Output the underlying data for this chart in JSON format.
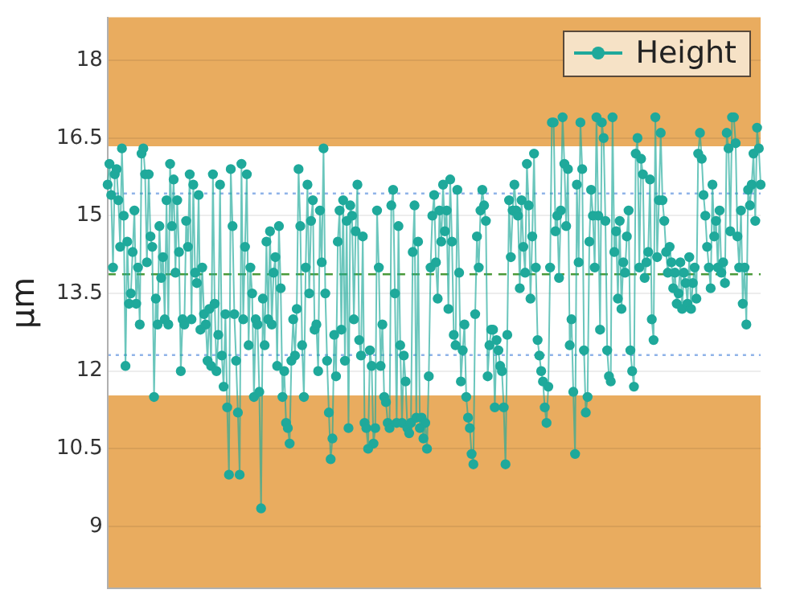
{
  "chart_data": {
    "type": "line",
    "ylabel": "µm",
    "categories": [
      null,
      null,
      null,
      null,
      null,
      null,
      null,
      null,
      null,
      null,
      null,
      null,
      null,
      null,
      null,
      null,
      null,
      null,
      null,
      null,
      null,
      null,
      null,
      null,
      null,
      null,
      null,
      null,
      null,
      null,
      null,
      null,
      null,
      null,
      null,
      null,
      null,
      null,
      null,
      null,
      null,
      null,
      null,
      null,
      null,
      null,
      null,
      null,
      null,
      null,
      null,
      null,
      null,
      null,
      null,
      null,
      null,
      null,
      null,
      null,
      null,
      null,
      null,
      null,
      null,
      null,
      null,
      null,
      null,
      null,
      null,
      null,
      null,
      null,
      null,
      null,
      null,
      null,
      null,
      null,
      null,
      null,
      null,
      null,
      null,
      null,
      null,
      null,
      null,
      null,
      null,
      null,
      null,
      null,
      null,
      null,
      null,
      null,
      null,
      null,
      null,
      null,
      null,
      null,
      null,
      null,
      null,
      null,
      null,
      null,
      null,
      null,
      null,
      null,
      null,
      null,
      null,
      null,
      null,
      null,
      null,
      null,
      null,
      null,
      null,
      null,
      null,
      null,
      null,
      null,
      null,
      null,
      null,
      null,
      null,
      null,
      null,
      null,
      null,
      null,
      null,
      null,
      null,
      null,
      null,
      null,
      null,
      null,
      null,
      null,
      null,
      null,
      null,
      null,
      null,
      null,
      null,
      null,
      null,
      null,
      null,
      null,
      null,
      null,
      null,
      null,
      null,
      null,
      null,
      null,
      null,
      null,
      null,
      null,
      null,
      null,
      null,
      null,
      null,
      null,
      null,
      null,
      null,
      null,
      null,
      null,
      null,
      null,
      null,
      null,
      null,
      null,
      null,
      null,
      null,
      null,
      null,
      null,
      null,
      null,
      null,
      null,
      null,
      null,
      null,
      null,
      null,
      null,
      null,
      null,
      null,
      null,
      null,
      null,
      null,
      null,
      null,
      null,
      null,
      null,
      null,
      null,
      null,
      null,
      null,
      null,
      null,
      null,
      null,
      null,
      null,
      null,
      null,
      null,
      null,
      null,
      null,
      null,
      null,
      null,
      null,
      null,
      null,
      null,
      null,
      null,
      null,
      null,
      null,
      null,
      null,
      null,
      null,
      null,
      null,
      null,
      null,
      null,
      null,
      null,
      null,
      null,
      null,
      null,
      null,
      null,
      null,
      null,
      null,
      null,
      null,
      null,
      null,
      null,
      null,
      null,
      null,
      null,
      null,
      null,
      null,
      null,
      null,
      null,
      null,
      null,
      null,
      null,
      null,
      null,
      null,
      null,
      null,
      null,
      null,
      null,
      null,
      null,
      null,
      null,
      null,
      null,
      null,
      null,
      null,
      null,
      null,
      null,
      null,
      null,
      null,
      null,
      null,
      null,
      null,
      null,
      null,
      null,
      null,
      null,
      null,
      null,
      null,
      null,
      null,
      null,
      null,
      null,
      null,
      null,
      null,
      null,
      null,
      null,
      null,
      null,
      null,
      null,
      null,
      null,
      null,
      null,
      null,
      null,
      null,
      null,
      null,
      null,
      null,
      null,
      null,
      null,
      null,
      null,
      null,
      null,
      null,
      null,
      null,
      null,
      null,
      null,
      null,
      null,
      null,
      null,
      null
    ],
    "series": [
      {
        "name": "Height",
        "color": "#1fa99b",
        "values": [
          15.6,
          16.0,
          15.4,
          14.0,
          15.8,
          15.9,
          15.3,
          14.4,
          16.3,
          15.0,
          12.1,
          14.5,
          13.3,
          13.5,
          14.3,
          15.1,
          13.3,
          14.0,
          12.9,
          16.2,
          16.3,
          15.8,
          14.1,
          15.8,
          14.6,
          14.4,
          11.5,
          13.4,
          12.9,
          14.8,
          13.8,
          14.2,
          13.0,
          15.3,
          12.9,
          16.0,
          14.8,
          15.7,
          13.9,
          15.3,
          14.3,
          12.0,
          13.0,
          12.9,
          14.9,
          14.4,
          15.8,
          13.0,
          15.6,
          13.9,
          13.7,
          15.4,
          12.8,
          14.0,
          13.1,
          12.9,
          12.2,
          13.2,
          12.1,
          15.8,
          13.3,
          12.0,
          12.7,
          15.6,
          12.3,
          11.7,
          13.1,
          11.3,
          10.0,
          15.9,
          14.8,
          13.1,
          12.2,
          11.2,
          10.0,
          16.0,
          13.0,
          14.4,
          15.8,
          12.5,
          14.0,
          13.5,
          11.5,
          13.0,
          12.9,
          11.6,
          9.35,
          13.4,
          12.5,
          14.5,
          13.0,
          14.7,
          12.9,
          13.9,
          14.2,
          12.1,
          14.8,
          13.6,
          11.5,
          12.0,
          11.0,
          10.9,
          10.6,
          12.2,
          13.0,
          12.3,
          13.2,
          15.9,
          14.8,
          12.5,
          11.5,
          14.0,
          15.6,
          13.5,
          14.9,
          15.3,
          12.8,
          12.9,
          12.0,
          15.1,
          14.1,
          16.3,
          13.5,
          12.2,
          11.2,
          10.3,
          10.7,
          12.7,
          11.9,
          14.5,
          15.1,
          12.8,
          15.3,
          12.2,
          14.9,
          10.9,
          15.2,
          15.0,
          13.0,
          14.7,
          15.6,
          12.6,
          12.3,
          14.6,
          11.0,
          10.9,
          10.5,
          12.4,
          12.1,
          10.6,
          10.9,
          15.1,
          14.0,
          12.1,
          12.9,
          11.5,
          11.4,
          11.0,
          10.9,
          15.2,
          15.5,
          13.5,
          11.0,
          14.8,
          12.5,
          11.0,
          12.3,
          11.8,
          10.9,
          10.8,
          11.0,
          14.3,
          15.2,
          11.1,
          14.5,
          10.9,
          11.1,
          10.7,
          11.0,
          10.5,
          11.9,
          14.0,
          15.0,
          15.4,
          14.1,
          13.4,
          15.1,
          14.5,
          15.6,
          14.7,
          15.1,
          13.2,
          15.7,
          14.5,
          12.7,
          12.5,
          15.5,
          13.9,
          11.8,
          12.4,
          12.9,
          11.5,
          11.1,
          10.9,
          10.4,
          10.2,
          13.1,
          14.6,
          14.0,
          15.1,
          15.5,
          15.2,
          14.9,
          11.9,
          12.5,
          12.8,
          12.8,
          11.3,
          12.6,
          12.4,
          12.1,
          12.0,
          11.3,
          10.2,
          12.7,
          15.3,
          14.2,
          15.1,
          15.6,
          15.1,
          15.0,
          13.6,
          15.3,
          14.4,
          13.9,
          16.0,
          15.2,
          13.4,
          14.6,
          16.2,
          14.0,
          12.6,
          12.3,
          12.0,
          11.8,
          11.3,
          11.0,
          11.7,
          14.0,
          16.8,
          16.8,
          14.7,
          15.0,
          13.8,
          15.1,
          16.9,
          16.0,
          14.8,
          15.9,
          12.5,
          13.0,
          11.6,
          10.4,
          15.6,
          14.1,
          16.8,
          15.9,
          12.4,
          11.2,
          11.5,
          14.5,
          15.5,
          15.0,
          14.0,
          16.9,
          15.0,
          12.8,
          16.8,
          16.5,
          14.9,
          12.4,
          11.9,
          11.8,
          16.9,
          14.3,
          14.7,
          13.4,
          14.9,
          13.2,
          14.1,
          13.9,
          14.6,
          15.1,
          12.4,
          12.0,
          11.7,
          16.2,
          16.5,
          14.0,
          16.1,
          15.8,
          13.8,
          14.1,
          14.3,
          15.7,
          13.0,
          12.6,
          16.9,
          14.2,
          15.3,
          16.6,
          15.3,
          14.9,
          14.3,
          13.9,
          14.4,
          14.1,
          13.6,
          13.9,
          13.3,
          13.5,
          14.1,
          13.2,
          13.9,
          13.7,
          13.3,
          14.2,
          13.2,
          13.7,
          14.0,
          13.4,
          16.2,
          16.6,
          16.1,
          15.4,
          15.0,
          14.4,
          14.0,
          13.6,
          15.6,
          14.6,
          14.9,
          14.0,
          15.1,
          13.9,
          14.1,
          13.7,
          16.6,
          16.3,
          14.7,
          16.9,
          16.9,
          16.4,
          14.6,
          14.0,
          15.1,
          13.3,
          14.0,
          12.9,
          15.5,
          15.2,
          15.6,
          16.2,
          14.9,
          16.7,
          16.3,
          15.6
        ]
      }
    ],
    "ylim": [
      7.8,
      18.83
    ],
    "yticks": [
      9,
      10.5,
      12,
      13.5,
      15,
      16.5,
      18
    ],
    "tick_labels": "y",
    "grid": "y",
    "legend": "top right",
    "marker": "circle",
    "line_style": "solid",
    "bands": [
      {
        "axis": "y",
        "from": 16.34,
        "to": 18.83,
        "color": "#e9ac5f"
      },
      {
        "axis": "y",
        "from": 7.8,
        "to": 11.53,
        "color": "#e9ac5f"
      }
    ],
    "ref_lines": [
      {
        "axis": "y",
        "value": 15.43,
        "color": "#8fb3e8",
        "line_style": "dotted"
      },
      {
        "axis": "y",
        "value": 13.87,
        "color": "#4a9a3a",
        "line_style": "dashed"
      },
      {
        "axis": "y",
        "value": 12.31,
        "color": "#8fb3e8",
        "line_style": "dotted"
      }
    ]
  }
}
